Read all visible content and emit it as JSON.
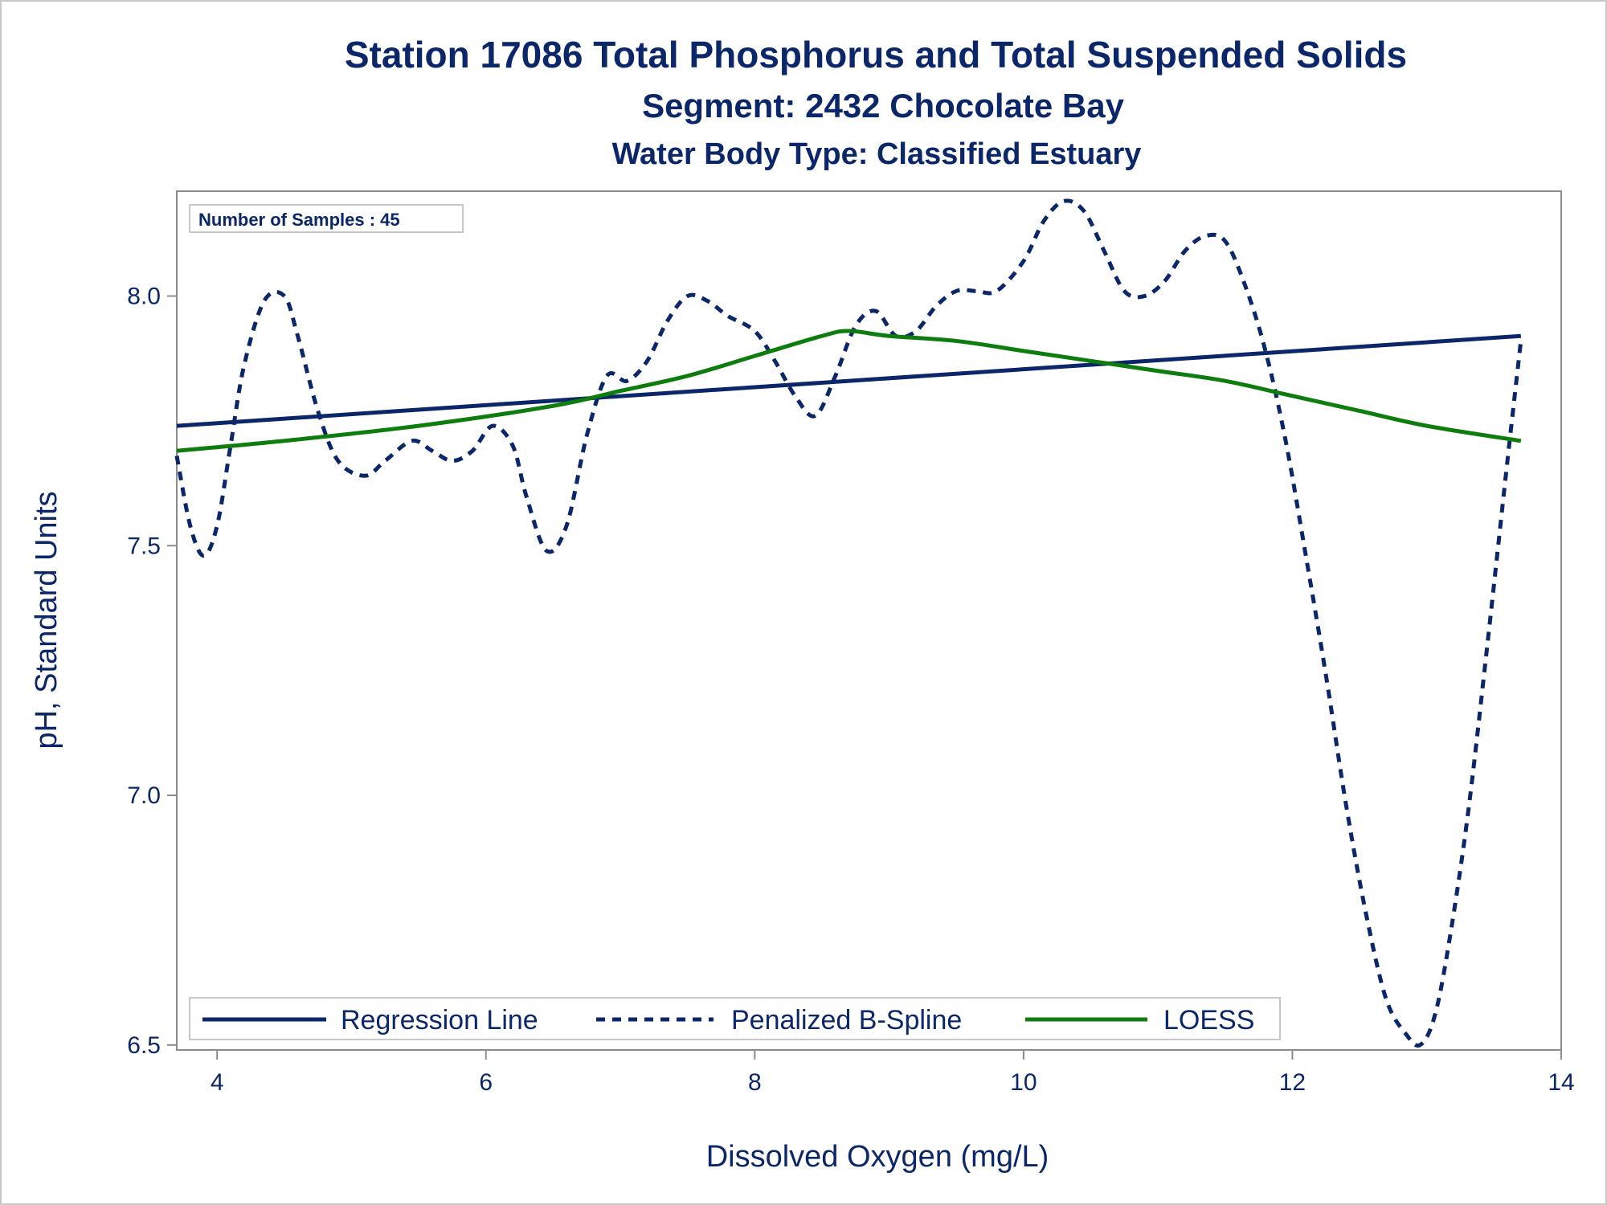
{
  "chart_data": {
    "type": "line",
    "title": "Station 17086  Total Phosphorus and Total Suspended Solids",
    "subtitle": "Segment: 2432  Chocolate Bay",
    "subtitle2": "Water Body Type: Classified Estuary",
    "xlabel": "Dissolved Oxygen (mg/L)",
    "ylabel": "pH, Standard Units",
    "xlim": [
      3.7,
      14.0
    ],
    "ylim": [
      6.49,
      8.21
    ],
    "xticks": [
      4,
      6,
      8,
      10,
      12,
      14
    ],
    "xtick_labels": [
      "4",
      "6",
      "8",
      "10",
      "12",
      "14"
    ],
    "yticks": [
      6.5,
      7.0,
      7.5,
      8.0
    ],
    "ytick_labels": [
      "6.5",
      "7.0",
      "7.5",
      "8.0"
    ],
    "grid": false,
    "legend_position": "bottom-left-inside",
    "annotation": "Number of Samples : 45",
    "series": [
      {
        "name": "Regression Line",
        "style": "solid",
        "color": "#0c2769",
        "x": [
          3.7,
          13.7
        ],
        "y": [
          7.74,
          7.92
        ]
      },
      {
        "name": "Penalized B-Spline",
        "style": "dashed",
        "color": "#0c2769",
        "x": [
          3.7,
          3.8,
          3.9,
          4.0,
          4.1,
          4.2,
          4.35,
          4.5,
          4.6,
          4.75,
          4.9,
          5.1,
          5.25,
          5.45,
          5.6,
          5.75,
          5.9,
          6.05,
          6.2,
          6.3,
          6.45,
          6.6,
          6.75,
          6.9,
          7.05,
          7.2,
          7.35,
          7.5,
          7.65,
          7.8,
          8.0,
          8.15,
          8.3,
          8.45,
          8.6,
          8.75,
          8.9,
          9.05,
          9.2,
          9.35,
          9.5,
          9.65,
          9.8,
          10.0,
          10.15,
          10.3,
          10.45,
          10.6,
          10.75,
          10.9,
          11.05,
          11.2,
          11.35,
          11.5,
          11.65,
          11.8,
          11.95,
          12.1,
          12.25,
          12.4,
          12.55,
          12.7,
          12.85,
          12.95,
          13.05,
          13.15,
          13.3,
          13.45,
          13.6,
          13.7
        ],
        "y": [
          7.68,
          7.54,
          7.48,
          7.54,
          7.7,
          7.86,
          7.99,
          8.0,
          7.92,
          7.77,
          7.67,
          7.64,
          7.67,
          7.71,
          7.69,
          7.67,
          7.69,
          7.74,
          7.7,
          7.6,
          7.49,
          7.54,
          7.72,
          7.84,
          7.83,
          7.87,
          7.95,
          8.0,
          7.99,
          7.96,
          7.93,
          7.87,
          7.8,
          7.76,
          7.84,
          7.94,
          7.97,
          7.92,
          7.93,
          7.98,
          8.01,
          8.01,
          8.01,
          8.07,
          8.15,
          8.19,
          8.17,
          8.09,
          8.01,
          8.0,
          8.03,
          8.09,
          8.12,
          8.11,
          8.02,
          7.89,
          7.71,
          7.48,
          7.24,
          6.98,
          6.76,
          6.59,
          6.52,
          6.5,
          6.55,
          6.68,
          6.95,
          7.3,
          7.67,
          7.91
        ]
      },
      {
        "name": "LOESS",
        "style": "solid",
        "color": "#0d7d0d",
        "x": [
          3.7,
          4.5,
          5.5,
          6.5,
          7.0,
          7.5,
          8.0,
          8.5,
          8.7,
          9.0,
          9.5,
          10.0,
          10.5,
          11.0,
          11.5,
          12.0,
          12.5,
          13.0,
          13.7
        ],
        "y": [
          7.69,
          7.71,
          7.74,
          7.78,
          7.81,
          7.84,
          7.88,
          7.92,
          7.93,
          7.92,
          7.91,
          7.89,
          7.87,
          7.85,
          7.83,
          7.8,
          7.77,
          7.74,
          7.71
        ]
      }
    ]
  }
}
